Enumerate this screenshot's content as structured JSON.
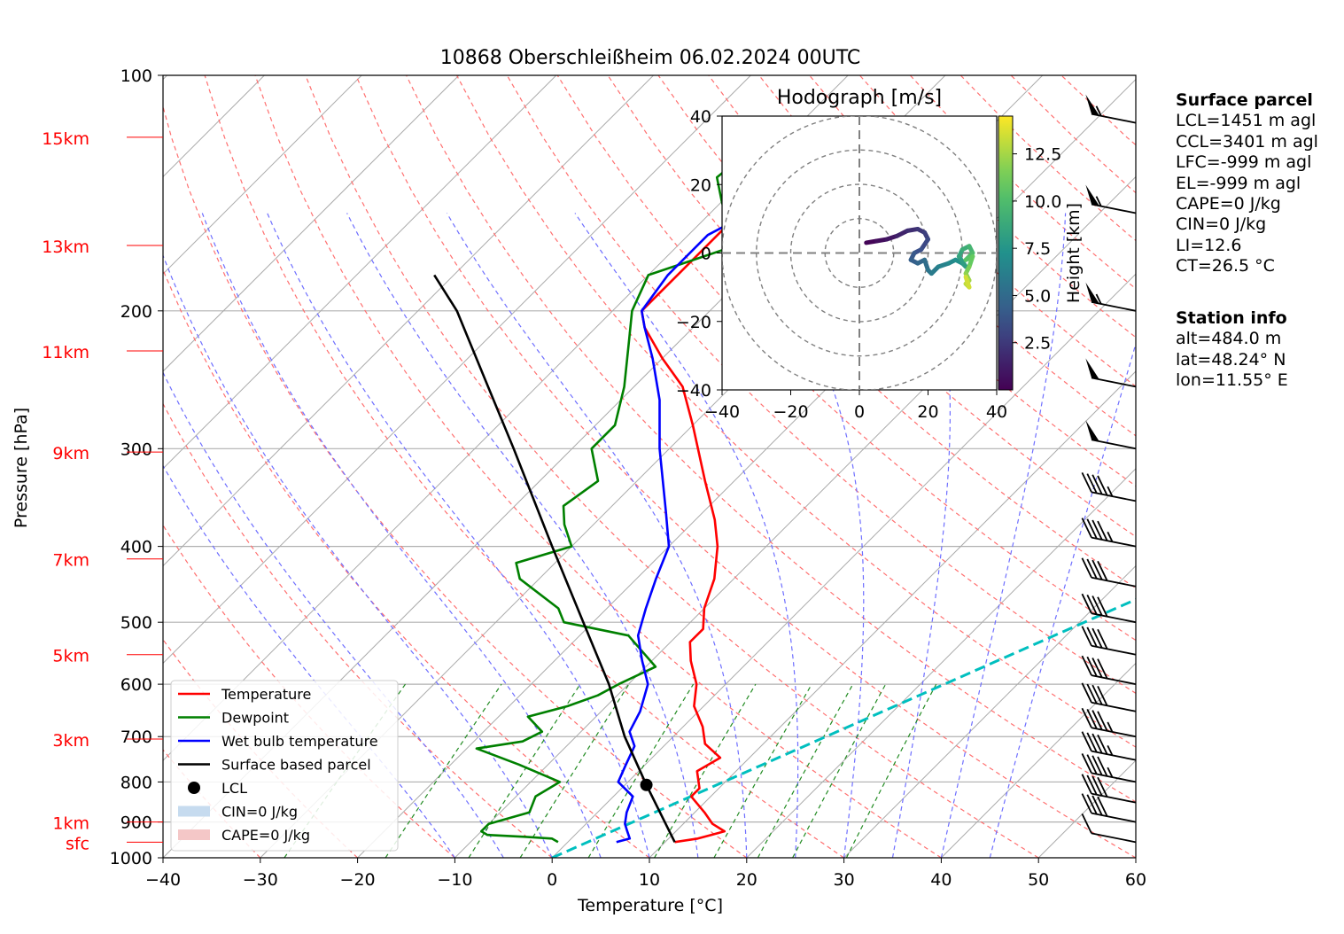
{
  "title": "10868 Oberschleißheim 06.02.2024 00UTC",
  "chart_data": [
    {
      "type": "line",
      "subtype": "skew-T log-P sounding",
      "title": "10868 Oberschleißheim 06.02.2024 00UTC",
      "xlabel": "Temperature [°C]",
      "ylabel": "Pressure [hPa]",
      "xlim": [
        -40,
        60
      ],
      "ylim": [
        1000,
        100
      ],
      "y_scale": "log",
      "x_ticks": [
        "−40",
        "−30",
        "−20",
        "−10",
        "0",
        "10",
        "20",
        "30",
        "40",
        "50",
        "60"
      ],
      "x_tick_values": [
        -40,
        -30,
        -20,
        -10,
        0,
        10,
        20,
        30,
        40,
        50,
        60
      ],
      "y_ticks": [
        "100",
        "200",
        "300",
        "400",
        "500",
        "600",
        "700",
        "800",
        "900",
        "1000"
      ],
      "y_tick_values": [
        100,
        200,
        300,
        400,
        500,
        600,
        700,
        800,
        900,
        1000
      ],
      "height_labels": [
        {
          "label": "sfc",
          "p": 955
        },
        {
          "label": "1km",
          "p": 900
        },
        {
          "label": "3km",
          "p": 705
        },
        {
          "label": "5km",
          "p": 550
        },
        {
          "label": "7km",
          "p": 415
        },
        {
          "label": "9km",
          "p": 303
        },
        {
          "label": "11km",
          "p": 225
        },
        {
          "label": "13km",
          "p": 165
        },
        {
          "label": "15km",
          "p": 120
        }
      ],
      "grid": true,
      "legend_position": "lower-left",
      "legend": [
        {
          "label": "Temperature",
          "color": "#ff0000",
          "kind": "line"
        },
        {
          "label": "Dewpoint",
          "color": "#008000",
          "kind": "line"
        },
        {
          "label": "Wet bulb temperature",
          "color": "#0000ff",
          "kind": "line"
        },
        {
          "label": "Surface based parcel",
          "color": "#000000",
          "kind": "line"
        },
        {
          "label": "LCL",
          "color": "#000000",
          "kind": "dot"
        },
        {
          "label": "CIN=0 J/kg",
          "color": "#c6dbef",
          "kind": "patch"
        },
        {
          "label": "CAPE=0 J/kg",
          "color": "#f4c7c7",
          "kind": "patch"
        }
      ],
      "series": [
        {
          "name": "Temperature",
          "color": "#ff0000",
          "points": [
            [
              11,
              955
            ],
            [
              13,
              945
            ],
            [
              14,
              935
            ],
            [
              15,
              925
            ],
            [
              13,
              905
            ],
            [
              11,
              875
            ],
            [
              8,
              835
            ],
            [
              8,
              815
            ],
            [
              6,
              775
            ],
            [
              7,
              745
            ],
            [
              4,
              715
            ],
            [
              2,
              680
            ],
            [
              -1,
              640
            ],
            [
              -3,
              600
            ],
            [
              -6,
              560
            ],
            [
              -8,
              530
            ],
            [
              -8,
              510
            ],
            [
              -10,
              480
            ],
            [
              -12,
              440
            ],
            [
              -15,
              400
            ],
            [
              -18,
              370
            ],
            [
              -23,
              330
            ],
            [
              -30,
              280
            ],
            [
              -35,
              250
            ],
            [
              -40,
              230
            ],
            [
              -45,
              210
            ],
            [
              -47,
              200
            ],
            [
              -47,
              180
            ],
            [
              -47,
              160
            ],
            [
              -47,
              150
            ],
            [
              -45,
              140
            ],
            [
              -41,
              130
            ],
            [
              -38,
              125
            ]
          ]
        },
        {
          "name": "Dewpoint",
          "color": "#008000",
          "points": [
            [
              -1,
              955
            ],
            [
              -2,
              945
            ],
            [
              -5,
              940
            ],
            [
              -9,
              935
            ],
            [
              -10,
              925
            ],
            [
              -10,
              905
            ],
            [
              -7,
              875
            ],
            [
              -8,
              835
            ],
            [
              -7,
              800
            ],
            [
              -13,
              760
            ],
            [
              -19,
              725
            ],
            [
              -15,
              710
            ],
            [
              -14,
              690
            ],
            [
              -17,
              660
            ],
            [
              -14,
              640
            ],
            [
              -12,
              620
            ],
            [
              -11,
              600
            ],
            [
              -9,
              570
            ],
            [
              -15,
              520
            ],
            [
              -23,
              500
            ],
            [
              -25,
              480
            ],
            [
              -32,
              440
            ],
            [
              -34,
              420
            ],
            [
              -30,
              400
            ],
            [
              -33,
              375
            ],
            [
              -35,
              355
            ],
            [
              -34,
              330
            ],
            [
              -38,
              300
            ],
            [
              -38,
              280
            ],
            [
              -41,
              250
            ],
            [
              -45,
              220
            ],
            [
              -48,
              200
            ],
            [
              -50,
              180
            ],
            [
              -44,
              165
            ],
            [
              -47,
              155
            ],
            [
              -50,
              145
            ],
            [
              -53,
              135
            ],
            [
              -52,
              120
            ]
          ]
        },
        {
          "name": "Wet bulb temperature",
          "color": "#0000ff",
          "points": [
            [
              5,
              955
            ],
            [
              6,
              945
            ],
            [
              5,
              925
            ],
            [
              4,
              905
            ],
            [
              3,
              875
            ],
            [
              2,
              835
            ],
            [
              -1,
              800
            ],
            [
              -2,
              760
            ],
            [
              -3,
              720
            ],
            [
              -5,
              690
            ],
            [
              -6,
              650
            ],
            [
              -8,
              600
            ],
            [
              -11,
              560
            ],
            [
              -14,
              520
            ],
            [
              -16,
              480
            ],
            [
              -18,
              440
            ],
            [
              -20,
              400
            ],
            [
              -24,
              360
            ],
            [
              -31,
              300
            ],
            [
              -36,
              260
            ],
            [
              -41,
              230
            ],
            [
              -45,
              210
            ],
            [
              -47,
              200
            ],
            [
              -48,
              180
            ],
            [
              -48,
              160
            ],
            [
              -46,
              150
            ],
            [
              -44,
              140
            ],
            [
              -40,
              130
            ],
            [
              -38,
              125
            ]
          ]
        },
        {
          "name": "Surface based parcel",
          "color": "#000000",
          "points": [
            [
              11,
              955
            ],
            [
              2.2,
              807
            ],
            [
              -5,
              700
            ],
            [
              -12,
              600
            ],
            [
              -21,
              500
            ],
            [
              -32,
              400
            ],
            [
              -46,
              300
            ],
            [
              -55,
              250
            ],
            [
              -66,
              200
            ],
            [
              -72,
              180
            ]
          ]
        }
      ],
      "lcl": {
        "t": 2.2,
        "p": 807
      },
      "ccl_line": {
        "color": "#00bfbf",
        "points": [
          [
            0,
            1000
          ],
          [
            78,
            170
          ]
        ]
      },
      "wind_barbs": [
        {
          "p": 955,
          "speed_kt": 10
        },
        {
          "p": 900,
          "speed_kt": 40
        },
        {
          "p": 850,
          "speed_kt": 40
        },
        {
          "p": 800,
          "speed_kt": 45
        },
        {
          "p": 750,
          "speed_kt": 45
        },
        {
          "p": 700,
          "speed_kt": 45
        },
        {
          "p": 650,
          "speed_kt": 40
        },
        {
          "p": 600,
          "speed_kt": 40
        },
        {
          "p": 550,
          "speed_kt": 40
        },
        {
          "p": 500,
          "speed_kt": 40
        },
        {
          "p": 450,
          "speed_kt": 40
        },
        {
          "p": 400,
          "speed_kt": 45
        },
        {
          "p": 350,
          "speed_kt": 45
        },
        {
          "p": 300,
          "speed_kt": 50
        },
        {
          "p": 250,
          "speed_kt": 50
        },
        {
          "p": 200,
          "speed_kt": 55
        },
        {
          "p": 150,
          "speed_kt": 55
        },
        {
          "p": 115,
          "speed_kt": 55
        }
      ]
    },
    {
      "type": "scatter",
      "subtype": "hodograph",
      "title": "Hodograph [m/s]",
      "xlim": [
        -40,
        40
      ],
      "ylim": [
        -40,
        40
      ],
      "x_ticks": [
        "−40",
        "−20",
        "0",
        "20",
        "40"
      ],
      "x_tick_values": [
        -40,
        -20,
        0,
        20,
        40
      ],
      "y_ticks": [
        "40",
        "20",
        "0",
        "−20",
        "−40"
      ],
      "y_tick_values": [
        40,
        20,
        0,
        -20,
        -40
      ],
      "rings": [
        10,
        20,
        30,
        40
      ],
      "colorbar": {
        "label": "Height [km]",
        "ticks": [
          "2.5",
          "5.0",
          "7.5",
          "10.0",
          "12.5"
        ],
        "tick_values": [
          2.5,
          5.0,
          7.5,
          10.0,
          12.5
        ],
        "range": [
          0,
          14.5
        ],
        "colormap": "viridis"
      },
      "points": [
        [
          2,
          3,
          0.2
        ],
        [
          5,
          3.5,
          0.6
        ],
        [
          8,
          4,
          1.0
        ],
        [
          11,
          5,
          1.5
        ],
        [
          14,
          6.5,
          2.0
        ],
        [
          17,
          7,
          2.4
        ],
        [
          19,
          6,
          2.8
        ],
        [
          20,
          4,
          3.2
        ],
        [
          18,
          1,
          3.6
        ],
        [
          16,
          0,
          4.0
        ],
        [
          15,
          -2,
          4.4
        ],
        [
          17,
          -3,
          4.8
        ],
        [
          19,
          -2,
          5.2
        ],
        [
          20,
          -5,
          5.6
        ],
        [
          21,
          -6,
          6.0
        ],
        [
          23,
          -4,
          6.4
        ],
        [
          26,
          -3,
          6.8
        ],
        [
          28,
          -2,
          7.2
        ],
        [
          30,
          -3,
          7.6
        ],
        [
          31,
          -4,
          8.0
        ],
        [
          29,
          -1,
          8.5
        ],
        [
          30,
          1,
          9.0
        ],
        [
          32,
          2,
          9.5
        ],
        [
          33,
          0,
          10.0
        ],
        [
          31,
          -2,
          10.5
        ],
        [
          33,
          -1,
          11.0
        ],
        [
          32,
          -4,
          11.5
        ],
        [
          31,
          -6,
          12.0
        ],
        [
          32,
          -8,
          12.5
        ],
        [
          31,
          -9,
          13.0
        ],
        [
          32,
          -10,
          13.5
        ],
        [
          31,
          -7,
          14.0
        ]
      ]
    }
  ],
  "surface_parcel": {
    "heading": "Surface parcel",
    "lines": [
      "LCL=1451 m agl",
      "CCL=3401 m agl",
      "LFC=-999 m agl",
      "EL=-999 m agl",
      "CAPE=0 J/kg",
      "CIN=0 J/kg",
      "LI=12.6",
      "CT=26.5 °C"
    ]
  },
  "station_info": {
    "heading": "Station info",
    "lines": [
      "alt=484.0 m",
      "lat=48.24° N",
      "lon=11.55° E"
    ]
  },
  "colors": {
    "isotherm": "#aaaaaa",
    "dry_adiabat": "#ff7070",
    "moist_adiabat": "#6f6fff",
    "mixing_ratio": "#228b22",
    "ccl_line": "#00bfbf"
  }
}
